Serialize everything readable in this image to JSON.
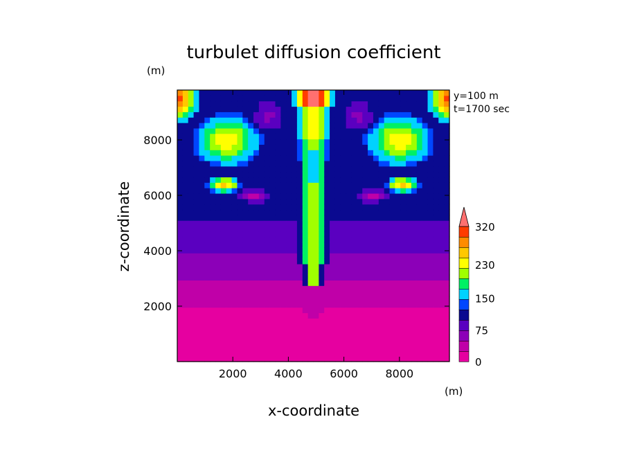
{
  "chart_data": {
    "type": "heatmap",
    "title": "turbulet diffusion coefficient",
    "xlabel": "x-coordinate",
    "ylabel": "z-coordinate",
    "x_unit": "(m)",
    "y_unit": "(m)",
    "annotation_lines": [
      "y=100 m",
      "t=1700 sec"
    ],
    "xlim": [
      0,
      9800
    ],
    "ylim": [
      0,
      9800
    ],
    "xticks": [
      2000,
      4000,
      6000,
      8000
    ],
    "yticks": [
      2000,
      4000,
      6000,
      8000
    ],
    "xtick_labels": [
      "2000",
      "4000",
      "6000",
      "8000"
    ],
    "ytick_labels": [
      "2000",
      "4000",
      "6000",
      "8000"
    ],
    "colorbar": {
      "levels": [
        0,
        20,
        40,
        55,
        75,
        95,
        115,
        150,
        175,
        200,
        230,
        255,
        280,
        320
      ],
      "tick_labels": [
        "0",
        "75",
        "150",
        "230",
        "320"
      ],
      "tick_values": [
        0,
        75,
        150,
        230,
        320
      ],
      "colors": [
        "#e600a0",
        "#c000a8",
        "#8c00b8",
        "#5a00c0",
        "#0a0a90",
        "#0046ff",
        "#00d2ff",
        "#00f064",
        "#a0ff00",
        "#ffff00",
        "#ffc800",
        "#ff8c00",
        "#ff3c00",
        "#ff7070"
      ],
      "extend_max": true
    },
    "field_description": "contour field on 50x50 grid, x from 0 to 9800 m, z from 0 to 9800 m"
  }
}
